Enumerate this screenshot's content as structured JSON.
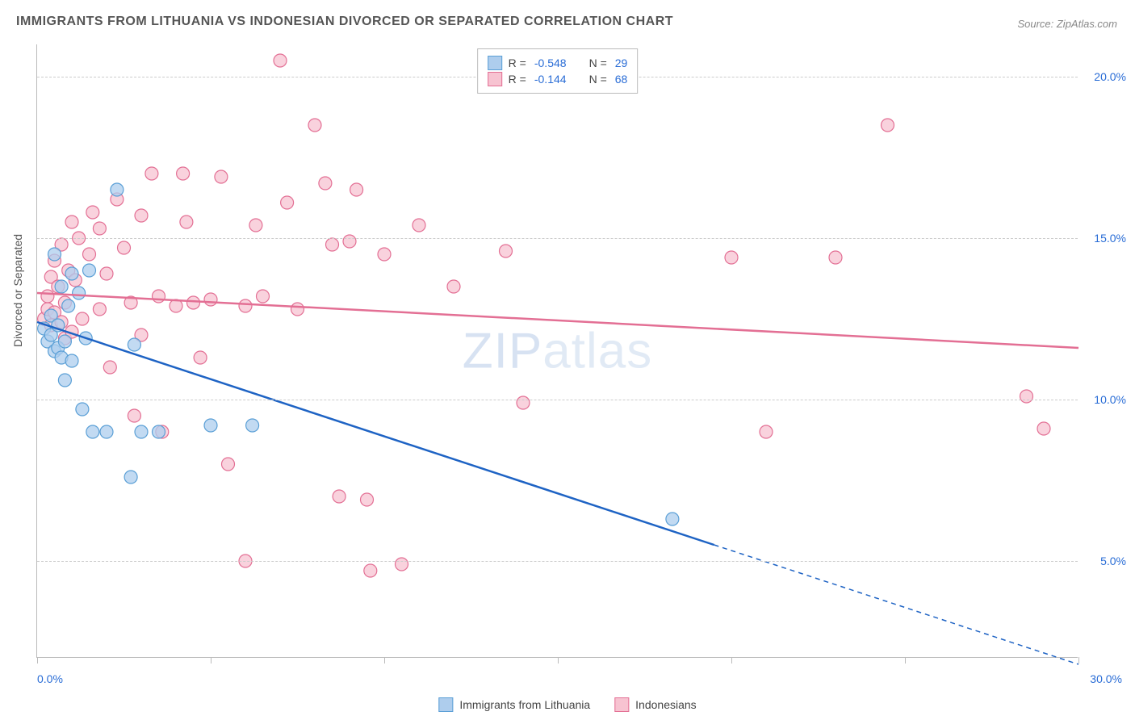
{
  "title": "IMMIGRANTS FROM LITHUANIA VS INDONESIAN DIVORCED OR SEPARATED CORRELATION CHART",
  "source_prefix": "Source: ",
  "source": "ZipAtlas.com",
  "ylabel": "Divorced or Separated",
  "watermark_bold": "ZIP",
  "watermark_light": "atlas",
  "chart": {
    "type": "scatter",
    "xlim": [
      0,
      30
    ],
    "ylim": [
      2,
      21
    ],
    "xticks": [
      0,
      5,
      10,
      15,
      20,
      25,
      30
    ],
    "xtick_labels_shown": {
      "0": "0.0%",
      "30": "30.0%"
    },
    "yticks": [
      5,
      10,
      15,
      20
    ],
    "ytick_labels": [
      "5.0%",
      "10.0%",
      "15.0%",
      "20.0%"
    ],
    "grid_color": "#cccccc",
    "axis_color": "#bbbbbb",
    "tick_label_color": "#2a6dd6",
    "point_radius": 8,
    "point_stroke_width": 1.2,
    "line_width": 2.5,
    "series": [
      {
        "id": "lithuania",
        "label": "Immigrants from Lithuania",
        "fill": "#aecded",
        "stroke": "#5a9fd6",
        "line_color": "#1e63c4",
        "R": "-0.548",
        "N": "29",
        "regression": {
          "x1": 0,
          "y1": 12.4,
          "x2": 19.5,
          "y2": 5.5,
          "x3": 30,
          "y3": 1.8,
          "dash_after_x": 19.5
        },
        "points": [
          [
            0.2,
            12.2
          ],
          [
            0.3,
            11.8
          ],
          [
            0.4,
            12.0
          ],
          [
            0.4,
            12.6
          ],
          [
            0.5,
            11.5
          ],
          [
            0.5,
            14.5
          ],
          [
            0.6,
            11.6
          ],
          [
            0.6,
            12.3
          ],
          [
            0.7,
            11.3
          ],
          [
            0.7,
            13.5
          ],
          [
            0.8,
            10.6
          ],
          [
            0.8,
            11.8
          ],
          [
            0.9,
            12.9
          ],
          [
            1.0,
            11.2
          ],
          [
            1.0,
            13.9
          ],
          [
            1.2,
            13.3
          ],
          [
            1.3,
            9.7
          ],
          [
            1.4,
            11.9
          ],
          [
            1.5,
            14.0
          ],
          [
            1.6,
            9.0
          ],
          [
            2.0,
            9.0
          ],
          [
            2.3,
            16.5
          ],
          [
            2.7,
            7.6
          ],
          [
            2.8,
            11.7
          ],
          [
            3.0,
            9.0
          ],
          [
            3.5,
            9.0
          ],
          [
            5.0,
            9.2
          ],
          [
            6.2,
            9.2
          ],
          [
            18.3,
            6.3
          ]
        ]
      },
      {
        "id": "indonesians",
        "label": "Indonesians",
        "fill": "#f7c3d1",
        "stroke": "#e36f94",
        "line_color": "#e36f94",
        "R": "-0.144",
        "N": "68",
        "regression": {
          "x1": 0,
          "y1": 13.3,
          "x2": 30,
          "y2": 11.6
        },
        "points": [
          [
            0.2,
            12.5
          ],
          [
            0.3,
            12.8
          ],
          [
            0.3,
            13.2
          ],
          [
            0.4,
            12.3
          ],
          [
            0.4,
            13.8
          ],
          [
            0.5,
            12.7
          ],
          [
            0.5,
            14.3
          ],
          [
            0.6,
            13.5
          ],
          [
            0.7,
            12.4
          ],
          [
            0.7,
            14.8
          ],
          [
            0.8,
            11.9
          ],
          [
            0.8,
            13.0
          ],
          [
            0.9,
            14.0
          ],
          [
            1.0,
            12.1
          ],
          [
            1.0,
            15.5
          ],
          [
            1.1,
            13.7
          ],
          [
            1.2,
            15.0
          ],
          [
            1.3,
            12.5
          ],
          [
            1.5,
            14.5
          ],
          [
            1.6,
            15.8
          ],
          [
            1.8,
            12.8
          ],
          [
            1.8,
            15.3
          ],
          [
            2.0,
            13.9
          ],
          [
            2.1,
            11.0
          ],
          [
            2.3,
            16.2
          ],
          [
            2.5,
            14.7
          ],
          [
            2.7,
            13.0
          ],
          [
            2.8,
            9.5
          ],
          [
            3.0,
            15.7
          ],
          [
            3.0,
            12.0
          ],
          [
            3.3,
            17.0
          ],
          [
            3.5,
            13.2
          ],
          [
            3.6,
            9.0
          ],
          [
            4.0,
            12.9
          ],
          [
            4.2,
            17.0
          ],
          [
            4.3,
            15.5
          ],
          [
            4.5,
            13.0
          ],
          [
            4.7,
            11.3
          ],
          [
            5.0,
            13.1
          ],
          [
            5.3,
            16.9
          ],
          [
            5.5,
            8.0
          ],
          [
            6.0,
            12.9
          ],
          [
            6.3,
            15.4
          ],
          [
            6.5,
            13.2
          ],
          [
            7.0,
            20.5
          ],
          [
            7.2,
            16.1
          ],
          [
            7.5,
            12.8
          ],
          [
            8.0,
            18.5
          ],
          [
            8.3,
            16.7
          ],
          [
            8.5,
            14.8
          ],
          [
            8.7,
            7.0
          ],
          [
            9.0,
            14.9
          ],
          [
            9.2,
            16.5
          ],
          [
            9.5,
            6.9
          ],
          [
            9.6,
            4.7
          ],
          [
            10.0,
            14.5
          ],
          [
            10.5,
            4.9
          ],
          [
            11.0,
            15.4
          ],
          [
            12.0,
            13.5
          ],
          [
            13.5,
            14.6
          ],
          [
            14.0,
            9.9
          ],
          [
            20.0,
            14.4
          ],
          [
            21.0,
            9.0
          ],
          [
            23.0,
            14.4
          ],
          [
            24.5,
            18.5
          ],
          [
            28.5,
            10.1
          ],
          [
            29.0,
            9.1
          ],
          [
            6.0,
            5.0
          ]
        ]
      }
    ]
  },
  "legend_top": {
    "r_label": "R =",
    "n_label": "N ="
  }
}
